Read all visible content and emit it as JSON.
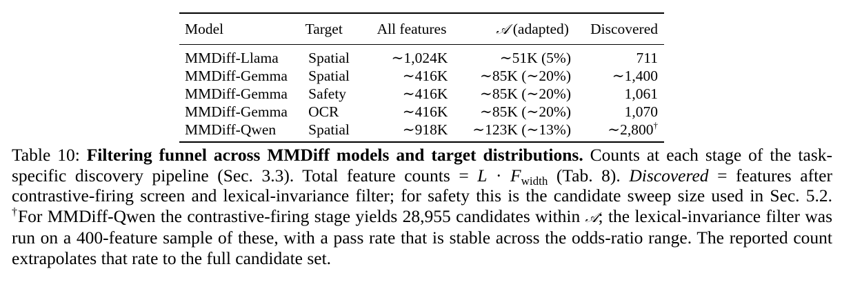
{
  "table": {
    "headers": {
      "model": "Model",
      "target": "Target",
      "all_features": "All features",
      "adapted_symbol": "𝒜",
      "adapted_text": " (adapted)",
      "discovered": "Discovered"
    },
    "rows": [
      {
        "model": "MMDiff-Llama",
        "target": "Spatial",
        "all": "∼1,024K",
        "adapted": "∼51K (5%)",
        "discovered": "711",
        "dagger": ""
      },
      {
        "model": "MMDiff-Gemma",
        "target": "Spatial",
        "all": "∼416K",
        "adapted": "∼85K (∼20%)",
        "discovered": "∼1,400",
        "dagger": ""
      },
      {
        "model": "MMDiff-Gemma",
        "target": "Safety",
        "all": "∼416K",
        "adapted": "∼85K (∼20%)",
        "discovered": "1,061",
        "dagger": ""
      },
      {
        "model": "MMDiff-Gemma",
        "target": "OCR",
        "all": "∼416K",
        "adapted": "∼85K (∼20%)",
        "discovered": "1,070",
        "dagger": ""
      },
      {
        "model": "MMDiff-Qwen",
        "target": "Spatial",
        "all": "∼918K",
        "adapted": "∼123K (∼13%)",
        "discovered": "∼2,800",
        "dagger": "†"
      }
    ]
  },
  "caption": {
    "label": "Table 10: ",
    "bold_title": "Filtering funnel across MMDiff models and target distributions.",
    "text_1": " Counts at each stage of the task-specific discovery pipeline (Sec. 3.3). Total feature counts = ",
    "math_L": "L",
    "math_dot": " · ",
    "math_F": "F",
    "math_sub": "width",
    "text_2": " (Tab. 8). ",
    "italic_discovered": "Discovered",
    "text_3": " = features after contrastive-firing screen and lexical-invariance filter; for safety this is the candidate sweep size used in Sec. 5.2. ",
    "dagger": "†",
    "text_4": "For MMDiff-Qwen the contrastive-firing stage yields 28,955 candidates within ",
    "math_A": "𝒜",
    "text_5": "; the lexical-invariance filter was run on a 400-feature sample of these, with a pass rate that is stable across the odds-ratio range. The reported count extrapolates that rate to the full candidate set."
  }
}
